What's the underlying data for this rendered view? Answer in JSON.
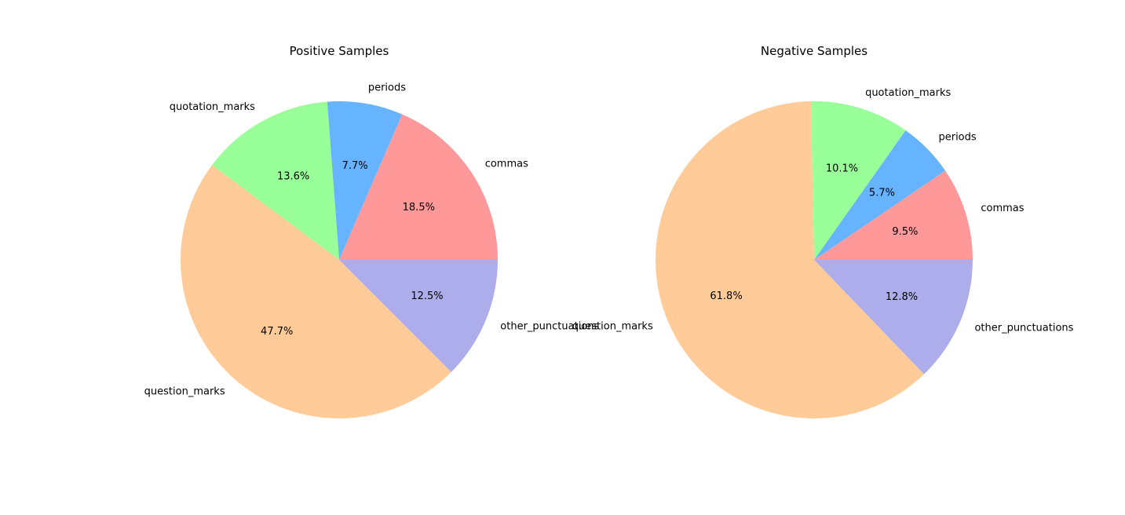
{
  "chart_data": [
    {
      "type": "pie",
      "title": "Positive Samples",
      "categories": [
        "commas",
        "periods",
        "quotation_marks",
        "question_marks",
        "other_punctuations"
      ],
      "values": [
        18.5,
        7.7,
        13.6,
        47.7,
        12.5
      ],
      "value_labels": [
        "18.5%",
        "7.7%",
        "13.6%",
        "47.7%",
        "12.5%"
      ],
      "colors": [
        "#ff9999",
        "#66b3ff",
        "#99ff99",
        "#ffcc99",
        "#adadeb"
      ],
      "start_angle_deg": 0,
      "direction": "counterclockwise"
    },
    {
      "type": "pie",
      "title": "Negative Samples",
      "categories": [
        "commas",
        "periods",
        "quotation_marks",
        "question_marks",
        "other_punctuations"
      ],
      "values": [
        9.5,
        5.7,
        10.1,
        61.8,
        12.8
      ],
      "value_labels": [
        "9.5%",
        "5.7%",
        "10.1%",
        "61.8%",
        "12.8%"
      ],
      "colors": [
        "#ff9999",
        "#66b3ff",
        "#99ff99",
        "#ffcc99",
        "#adadeb"
      ],
      "start_angle_deg": 0,
      "direction": "counterclockwise"
    }
  ]
}
